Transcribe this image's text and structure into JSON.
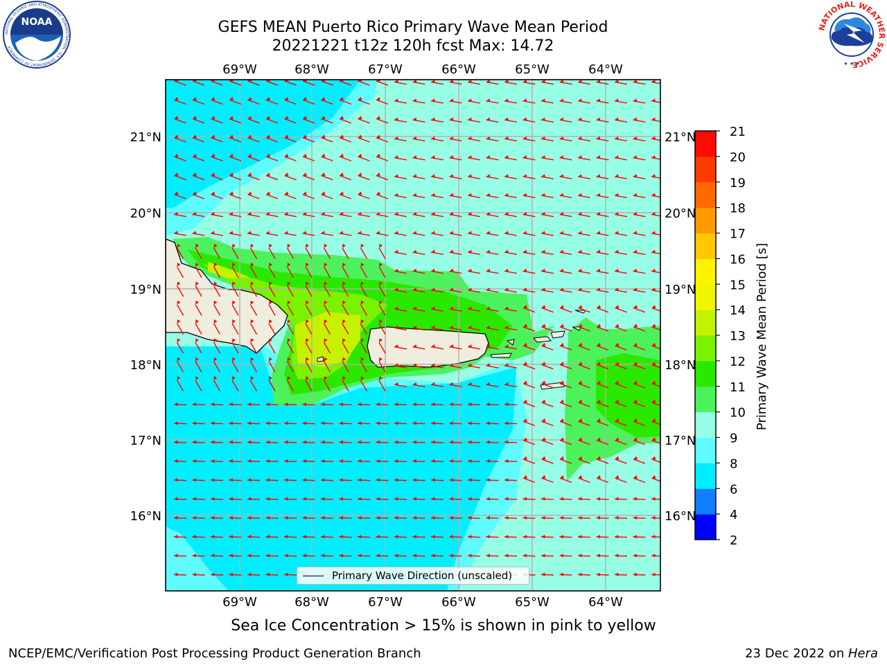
{
  "header": {
    "title_line1": "GEFS MEAN Puerto Rico Primary Wave Mean Period",
    "title_line2": "20221221 t12z 120h fcst   Max: 14.72"
  },
  "logos": {
    "left": {
      "name": "noaa-logo",
      "text": "NOAA",
      "ring_text": "NATIONAL OCEANIC AND ATMOSPHERIC ADMINISTRATION · U.S. DEPARTMENT OF COMMERCE"
    },
    "right": {
      "name": "nws-logo",
      "ring_text": "NATIONAL WEATHER SERVICE"
    }
  },
  "map": {
    "lon_labels": [
      "69°W",
      "68°W",
      "67°W",
      "66°W",
      "65°W",
      "64°W"
    ],
    "lat_labels": [
      "21°N",
      "20°N",
      "19°N",
      "18°N",
      "17°N",
      "16°N"
    ],
    "arrow_color": "#ff0000",
    "land_color": "#efedde",
    "legend_label": "Primary Wave Direction (unscaled)"
  },
  "colorbar": {
    "label": "Primary Wave Mean Period [s]",
    "ticks": [
      "2",
      "4",
      "6",
      "8",
      "9",
      "10",
      "11",
      "12",
      "13",
      "14",
      "15",
      "16",
      "17",
      "18",
      "19",
      "20",
      "21"
    ],
    "colors": [
      "#0000ff",
      "#0f7fff",
      "#00eeff",
      "#5ffcff",
      "#98ffe7",
      "#4cf25c",
      "#2be800",
      "#7af200",
      "#c5f200",
      "#f0f500",
      "#fff300",
      "#ffc800",
      "#ff9a00",
      "#ff6a00",
      "#ff3a00",
      "#ff0a00"
    ]
  },
  "footer": {
    "ice_note": "Sea Ice Concentration > 15% is shown in pink to yellow",
    "branch": "NCEP/EMC/Verification Post Processing Product Generation Branch",
    "date": "23 Dec 2022 on ",
    "machine": "Hera"
  }
}
